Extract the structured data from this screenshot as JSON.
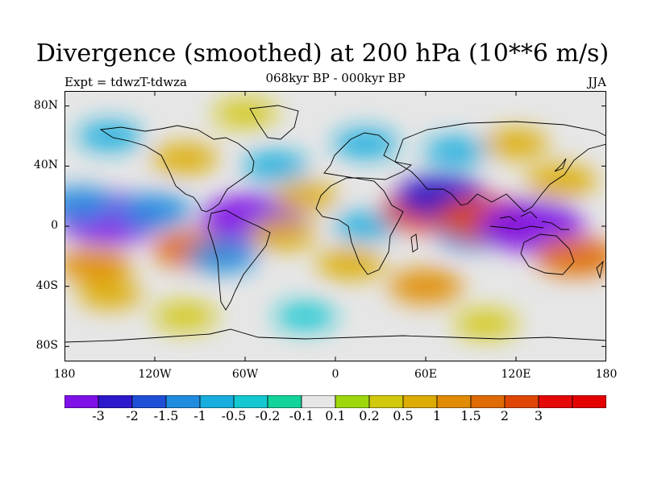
{
  "header": {
    "title": "Divergence (smoothed) at 200 hPa (10**6 m/s)",
    "subtitle": "068kyr BP - 000kyr BP",
    "left_label": "Expt = tdwzT-tdwza",
    "right_label": "JJA"
  },
  "map": {
    "projection": "cylindrical equidistant",
    "lon_range": [
      -180,
      180
    ],
    "lat_range": [
      -90,
      90
    ],
    "lat_ticks": [
      {
        "value": 80,
        "label": "80N"
      },
      {
        "value": 40,
        "label": "40N"
      },
      {
        "value": 0,
        "label": "0"
      },
      {
        "value": -40,
        "label": "40S"
      },
      {
        "value": -80,
        "label": "80S"
      }
    ],
    "lon_ticks": [
      {
        "value": -180,
        "label": "180"
      },
      {
        "value": -120,
        "label": "120W"
      },
      {
        "value": -60,
        "label": "60W"
      },
      {
        "value": 0,
        "label": "0"
      },
      {
        "value": 60,
        "label": "60E"
      },
      {
        "value": 120,
        "label": "120E"
      },
      {
        "value": 180,
        "label": "180"
      }
    ],
    "neutral_color": "#e6e6e6",
    "fields": [
      {
        "lon": -150,
        "lat": 5,
        "value": -3.2
      },
      {
        "lon": -120,
        "lat": 10,
        "value": -1.2
      },
      {
        "lon": -160,
        "lat": -25,
        "value": 1.2
      },
      {
        "lon": -150,
        "lat": -45,
        "value": 0.6
      },
      {
        "lon": -170,
        "lat": 15,
        "value": -1.0
      },
      {
        "lon": -95,
        "lat": -15,
        "value": 1.6
      },
      {
        "lon": -75,
        "lat": -20,
        "value": -1.0
      },
      {
        "lon": -55,
        "lat": 5,
        "value": -3.0
      },
      {
        "lon": -35,
        "lat": -5,
        "value": 0.8
      },
      {
        "lon": -20,
        "lat": 20,
        "value": 0.6
      },
      {
        "lon": 20,
        "lat": 0,
        "value": -0.5
      },
      {
        "lon": 60,
        "lat": 10,
        "value": 2.2
      },
      {
        "lon": 70,
        "lat": 20,
        "value": -2.2
      },
      {
        "lon": 90,
        "lat": -5,
        "value": -1.0
      },
      {
        "lon": 100,
        "lat": 5,
        "value": 2.6
      },
      {
        "lon": 130,
        "lat": 0,
        "value": -3.2
      },
      {
        "lon": 160,
        "lat": -20,
        "value": 1.8
      },
      {
        "lon": 150,
        "lat": 30,
        "value": 1.0
      },
      {
        "lon": 60,
        "lat": -40,
        "value": 1.2
      },
      {
        "lon": 10,
        "lat": -25,
        "value": 0.8
      },
      {
        "lon": -100,
        "lat": 45,
        "value": 0.7
      },
      {
        "lon": -40,
        "lat": 40,
        "value": -0.6
      },
      {
        "lon": 20,
        "lat": 55,
        "value": -0.6
      },
      {
        "lon": 80,
        "lat": 50,
        "value": -0.5
      },
      {
        "lon": 120,
        "lat": 55,
        "value": 0.6
      },
      {
        "lon": -60,
        "lat": 75,
        "value": 0.5
      },
      {
        "lon": -150,
        "lat": 60,
        "value": -0.6
      },
      {
        "lon": -100,
        "lat": -60,
        "value": 0.5
      },
      {
        "lon": 100,
        "lat": -65,
        "value": 0.5
      },
      {
        "lon": -20,
        "lat": -60,
        "value": -0.4
      }
    ]
  },
  "colorbar": {
    "colors": [
      "#7f10e8",
      "#2e18cc",
      "#1e4fd6",
      "#1f8ce0",
      "#16aede",
      "#14c8d2",
      "#12d49a",
      "#e6e6e6",
      "#9ed80c",
      "#d2c80c",
      "#dcab04",
      "#e18c04",
      "#e06a04",
      "#df4604",
      "#e50808",
      "#e40000"
    ],
    "labels": [
      "-3",
      "-2",
      "-1.5",
      "-1",
      "-0.5",
      "-0.2",
      "-0.1",
      "0.1",
      "0.2",
      "0.5",
      "1",
      "1.5",
      "2",
      "3"
    ]
  }
}
